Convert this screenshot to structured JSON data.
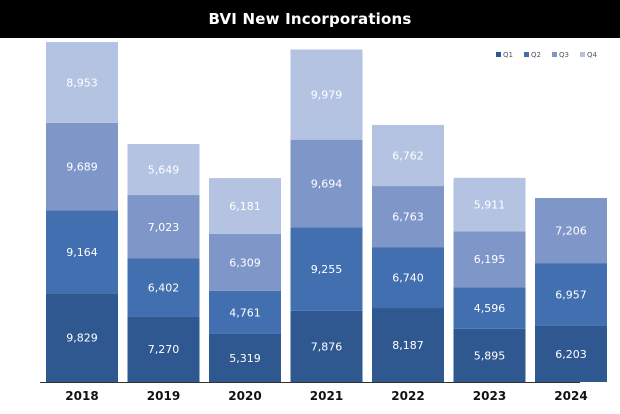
{
  "header": {
    "title": "BVI New Incorporations"
  },
  "chart_data": {
    "type": "bar",
    "stacked": true,
    "title": "BVI New Incorporations",
    "categories": [
      "2018",
      "2019",
      "2020",
      "2021",
      "2022",
      "2023",
      "2024"
    ],
    "series": [
      {
        "name": "Q1",
        "color": "#2f5890",
        "values": [
          9829,
          7270,
          5319,
          7876,
          8187,
          5895,
          6203
        ]
      },
      {
        "name": "Q2",
        "color": "#416fb0",
        "values": [
          9164,
          6402,
          4761,
          9255,
          6740,
          4596,
          6957
        ]
      },
      {
        "name": "Q3",
        "color": "#7f97c8",
        "values": [
          9689,
          7023,
          6309,
          9694,
          6763,
          6195,
          7206
        ]
      },
      {
        "name": "Q4",
        "color": "#b3c3e1",
        "values": [
          8953,
          5649,
          6181,
          9979,
          6762,
          5911,
          null
        ]
      }
    ],
    "value_labels": [
      [
        "9,829",
        "7,270",
        "5,319",
        "7,876",
        "8,187",
        "5,895",
        "6,203"
      ],
      [
        "9,164",
        "6,402",
        "4,761",
        "9,255",
        "6,740",
        "4,596",
        "6,957"
      ],
      [
        "9,689",
        "7,023",
        "6,309",
        "9,694",
        "6,763",
        "6,195",
        "7,206"
      ],
      [
        "8,953",
        "5,649",
        "6,181",
        "9,979",
        "6,762",
        "5,911",
        ""
      ]
    ],
    "legend_position": "top-right",
    "grid": false,
    "ylim": [
      0,
      37635
    ]
  }
}
